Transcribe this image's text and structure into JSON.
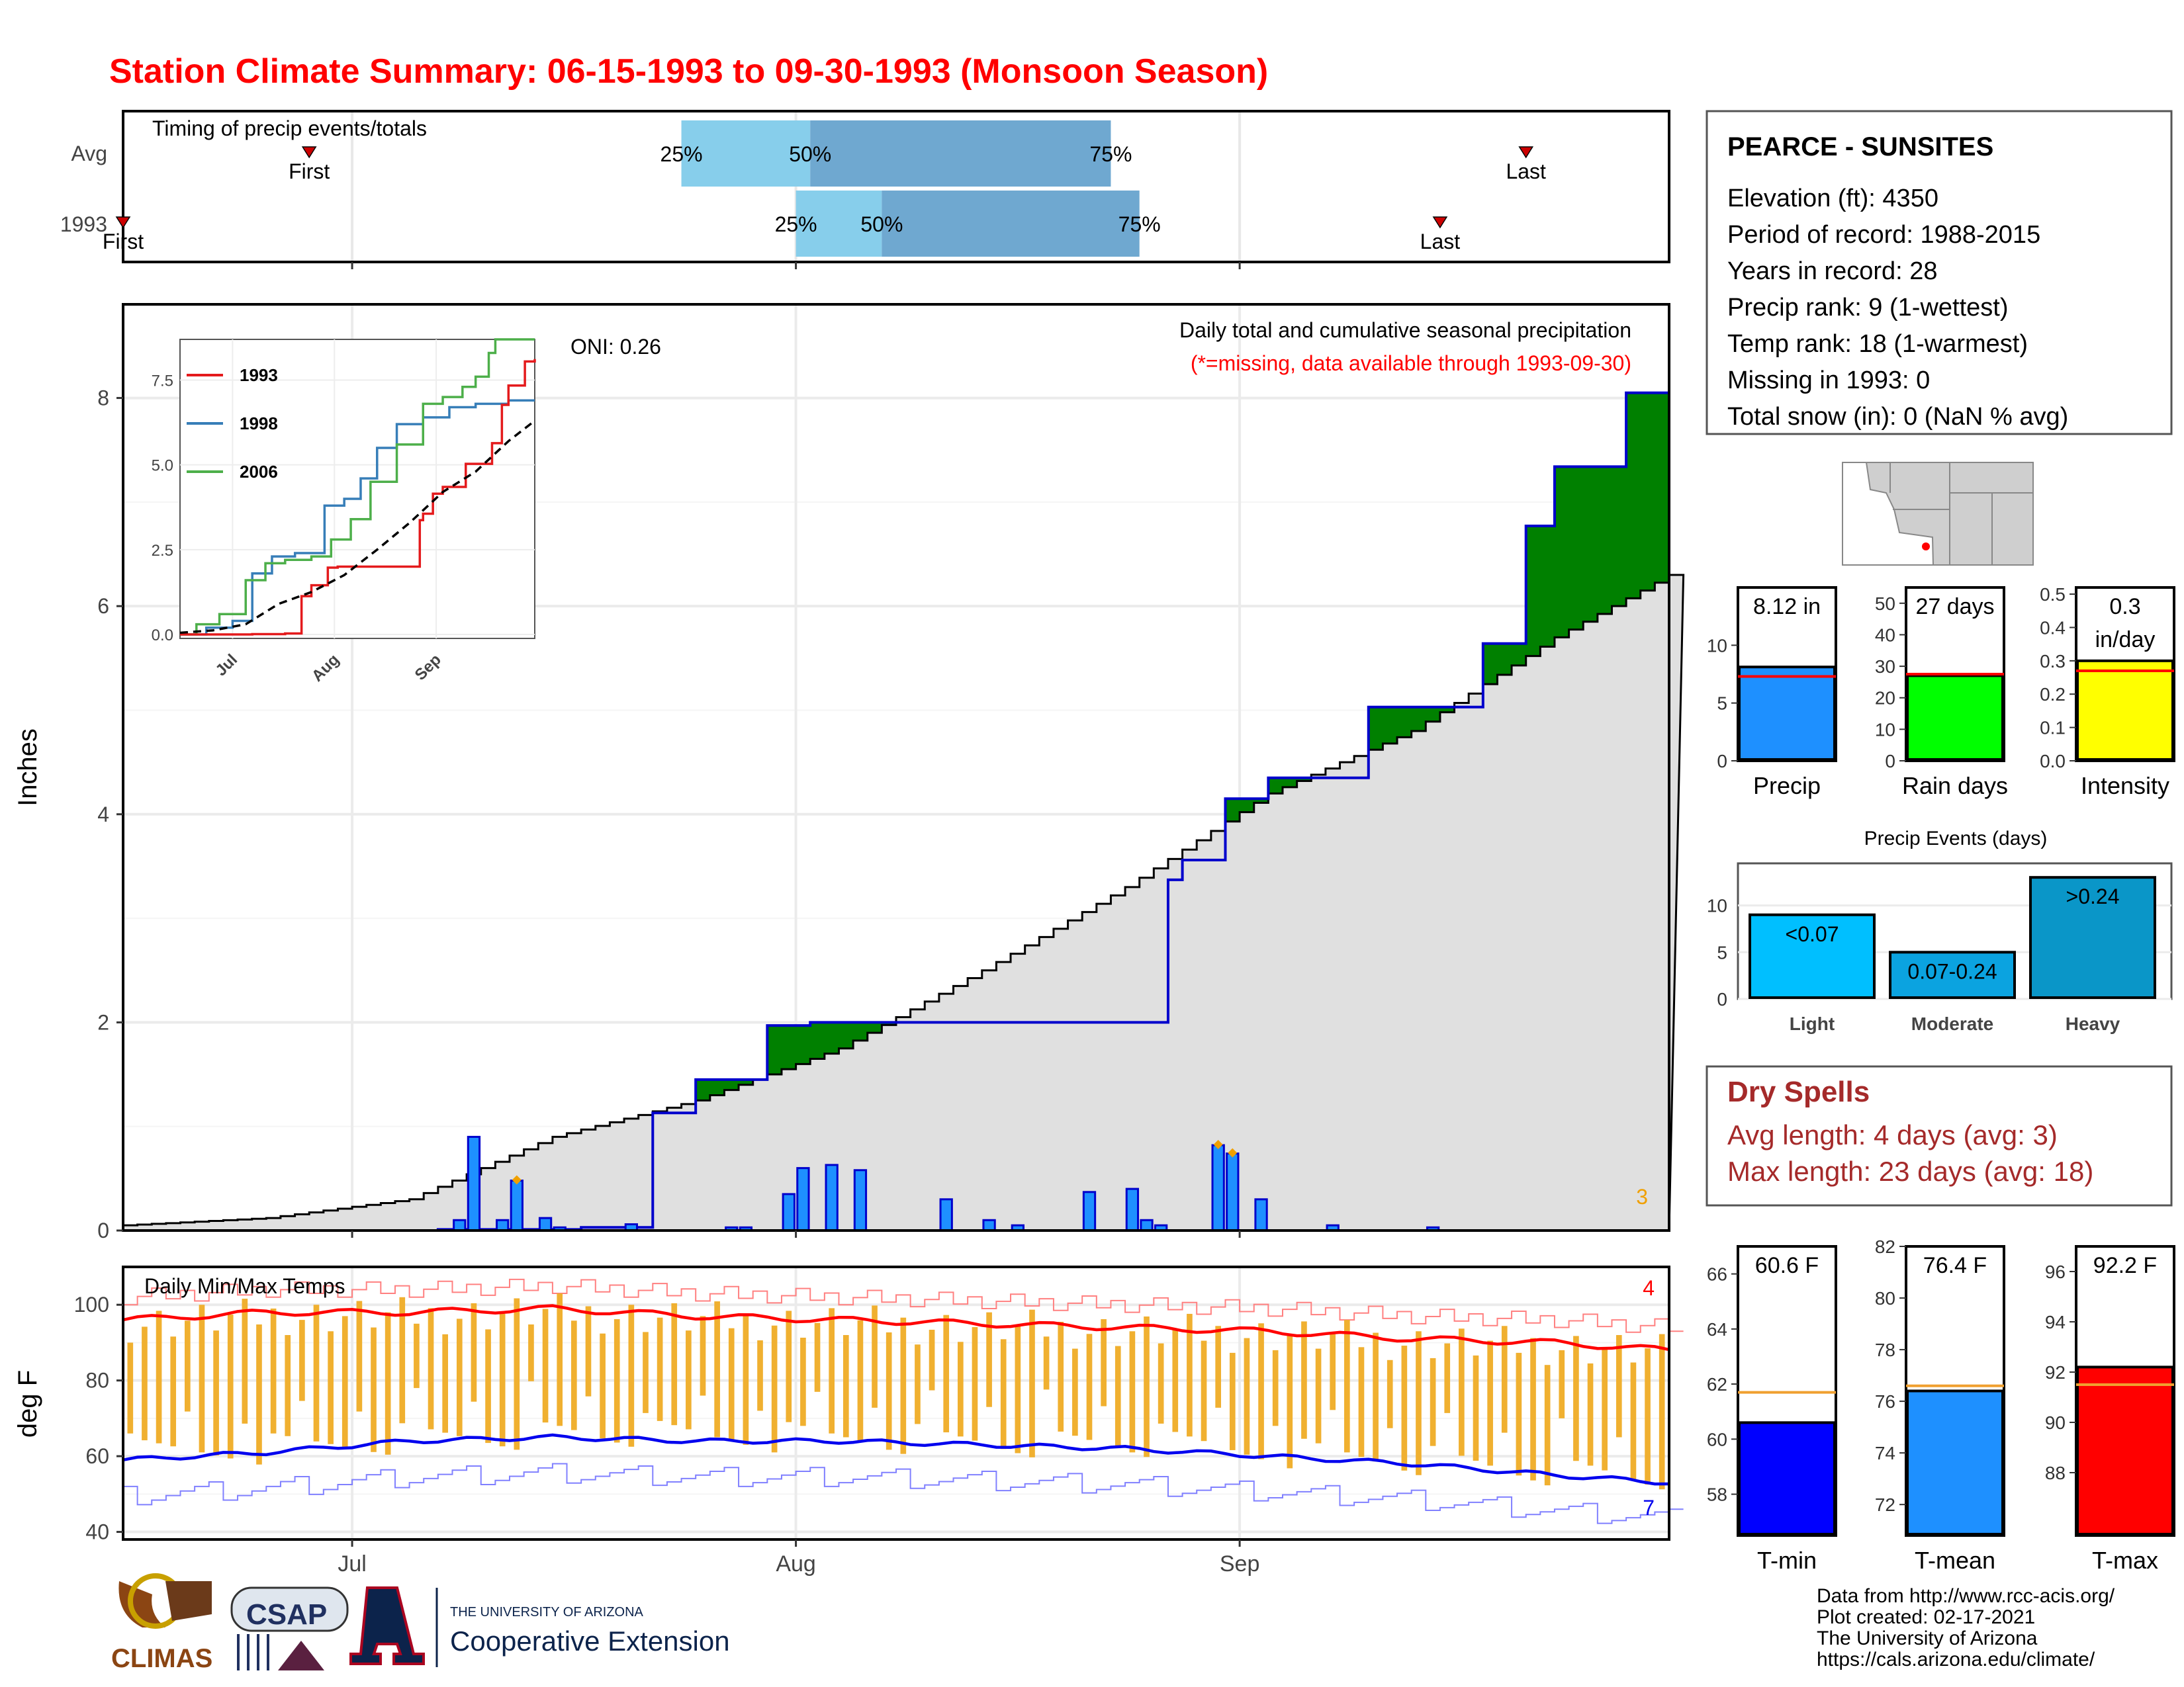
{
  "title": "Station Climate Summary: 06-15-1993 to 09-30-1993 (Monsoon Season)",
  "colors": {
    "title": "#ff0000",
    "precip_blue": "#1e90ff",
    "above": "#008000",
    "below": "#8b5a00",
    "normal": "#e0e0e0",
    "temp_bar": "#f0b030",
    "max": "#ff0000",
    "min": "#0000ee",
    "dry": "#a52a2a"
  },
  "x_axis": {
    "ticks": [
      "Jul",
      "Aug",
      "Sep"
    ]
  },
  "timing": {
    "title": "Timing of precip events/totals",
    "row_labels": [
      "Avg",
      "1993"
    ],
    "avg": {
      "first": "First",
      "last": "Last",
      "p25": "25%",
      "p50": "50%",
      "p75": "75%"
    },
    "y1993": {
      "first": "First",
      "last": "Last",
      "p25": "25%",
      "p50": "50%",
      "p75": "75%"
    },
    "chart_data": {
      "type": "bar",
      "rows": [
        {
          "name": "Avg",
          "first": "1993-06-28",
          "p25": "1993-07-24",
          "p50": "1993-08-02",
          "p75": "1993-08-23",
          "last": "1993-09-21"
        },
        {
          "name": "1993",
          "first": "1993-06-15",
          "p25": "1993-08-01",
          "p50": "1993-08-07",
          "p75": "1993-08-25",
          "last": "1993-09-15"
        }
      ]
    }
  },
  "station": {
    "name": "PEARCE - SUNSITES",
    "lines": [
      "Elevation (ft): 4350",
      "Period of record: 1988-2015",
      "Years in record: 28",
      "Precip rank: 9 (1-wettest)",
      "Temp rank: 18 (1-warmest)",
      "Missing in 1993: 0",
      "Total snow (in): 0 (NaN % avg)"
    ]
  },
  "precip_main": {
    "ylabel": "Inches",
    "oni": "ONI: 0.26",
    "desc": "Daily total and cumulative seasonal precipitation",
    "missing": "(*=missing, data available through 1993-09-30)",
    "count_label": "3",
    "y_ticks": [
      "0",
      "2",
      "4",
      "6",
      "8"
    ],
    "chart_data": {
      "type": "area",
      "ylim": [
        0,
        8.9
      ],
      "series": [
        {
          "name": "1993 cumulative",
          "x": [
            0,
            16,
            22,
            32,
            37,
            40,
            45,
            48,
            52,
            53,
            58,
            59,
            65,
            69,
            73,
            74,
            77,
            79,
            80,
            84,
            86,
            87,
            91,
            95,
            98,
            100,
            105,
            108
          ],
          "y": [
            0,
            0,
            0.01,
            0.03,
            1.13,
            1.45,
            1.97,
            2.0,
            2.0,
            2.0,
            2.0,
            2.0,
            2.0,
            2.0,
            3.37,
            3.56,
            4.15,
            4.15,
            4.35,
            4.35,
            4.35,
            5.03,
            5.03,
            5.64,
            6.77,
            7.34,
            8.05,
            8.12
          ]
        },
        {
          "name": "Average cumulative",
          "x": [
            0,
            10,
            20,
            30,
            40,
            50,
            60,
            70,
            80,
            90,
            100,
            108
          ],
          "y": [
            0.05,
            0.12,
            0.3,
            0.9,
            1.25,
            1.75,
            2.5,
            3.3,
            4.2,
            4.8,
            5.7,
            6.3
          ]
        }
      ],
      "daily": {
        "x": [
          23,
          24,
          26,
          27,
          29,
          30,
          35,
          42,
          43,
          46,
          47,
          49,
          51,
          57,
          60,
          62,
          67,
          70,
          71,
          72,
          76,
          77,
          79,
          84,
          91
        ],
        "y": [
          0.1,
          0.9,
          0.1,
          0.48,
          0.12,
          0.03,
          0.06,
          0.03,
          0.03,
          0.35,
          0.6,
          0.63,
          0.58,
          0.3,
          0.1,
          0.05,
          0.37,
          0.4,
          0.1,
          0.05,
          0.82,
          0.74,
          0.3,
          0.05,
          0.03
        ]
      }
    }
  },
  "inset": {
    "legend": [
      "1993",
      "1998",
      "2006"
    ],
    "y_ticks": [
      "0.0",
      "2.5",
      "5.0",
      "7.5"
    ],
    "x_ticks": [
      "Jul",
      "Aug",
      "Sep"
    ]
  },
  "temps": {
    "title": "Daily Min/Max Temps",
    "ylabel": "deg F",
    "y_ticks": [
      "40",
      "60",
      "80",
      "100"
    ],
    "count_max": "4",
    "count_min": "7",
    "chart_data": {
      "type": "bar",
      "ylim": [
        38,
        110
      ],
      "avg_max": {
        "x": [
          0,
          10,
          20,
          30,
          40,
          50,
          60,
          70,
          80,
          90,
          100,
          108
        ],
        "y": [
          96,
          98,
          98,
          99,
          97,
          96,
          95,
          94,
          93,
          91,
          90,
          88
        ]
      },
      "avg_min": {
        "x": [
          0,
          10,
          20,
          30,
          40,
          50,
          60,
          70,
          80,
          90,
          100,
          108
        ],
        "y": [
          59,
          61,
          64,
          65,
          64,
          64,
          63,
          62,
          60,
          58,
          55,
          53
        ]
      }
    }
  },
  "bars_precip": {
    "precip": {
      "label": "8.12 in",
      "name": "Precip",
      "ticks": [
        "0",
        "5",
        "10"
      ],
      "value": 8.12,
      "avg": 7.3,
      "max": 15
    },
    "rain": {
      "label": "27 days",
      "name": "Rain days",
      "ticks": [
        "0",
        "10",
        "20",
        "30",
        "40",
        "50"
      ],
      "value": 27,
      "avg": 27.5,
      "max": 55
    },
    "intensity": {
      "label1": "0.3",
      "label2": "in/day",
      "name": "Intensity",
      "ticks": [
        "0.0",
        "0.1",
        "0.2",
        "0.3",
        "0.4",
        "0.5"
      ],
      "value": 0.3,
      "avg": 0.27,
      "max": 0.52
    }
  },
  "events": {
    "title": "Precip Events (days)",
    "ticks": [
      "0",
      "5",
      "10"
    ],
    "chart_data": {
      "type": "bar",
      "categories": [
        "Light",
        "Moderate",
        "Heavy"
      ],
      "values": [
        9,
        5,
        13
      ],
      "labels": [
        "<0.07",
        "0.07-0.24",
        ">0.24"
      ]
    }
  },
  "dry": {
    "title": "Dry Spells",
    "avg": "Avg length: 4 days (avg: 3)",
    "max": "Max length: 23 days (avg: 18)"
  },
  "temp_bars": {
    "tmin": {
      "label": "60.6 F",
      "name": "T-min",
      "ticks": [
        "58",
        "60",
        "62",
        "64",
        "66"
      ],
      "value": 60.6,
      "avg": 61.7,
      "lo": 56.5,
      "hi": 67
    },
    "tmean": {
      "label": "76.4 F",
      "name": "T-mean",
      "ticks": [
        "72",
        "74",
        "76",
        "78",
        "80",
        "82"
      ],
      "value": 76.4,
      "avg": 76.6,
      "lo": 70.8,
      "hi": 82
    },
    "tmax": {
      "label": "92.2 F",
      "name": "T-max",
      "ticks": [
        "88",
        "90",
        "92",
        "94",
        "96"
      ],
      "value": 92.2,
      "avg": 91.5,
      "lo": 85.5,
      "hi": 97
    }
  },
  "footer": {
    "lines": [
      "Data from http://www.rcc-acis.org/",
      "Plot created: 02-17-2021",
      "The University of Arizona",
      "https://cals.arizona.edu/climate/"
    ]
  },
  "logos": {
    "climas": "CLIMAS",
    "csap": "CSAP",
    "ua_small": "THE UNIVERSITY OF ARIZONA",
    "coop": "Cooperative Extension"
  }
}
